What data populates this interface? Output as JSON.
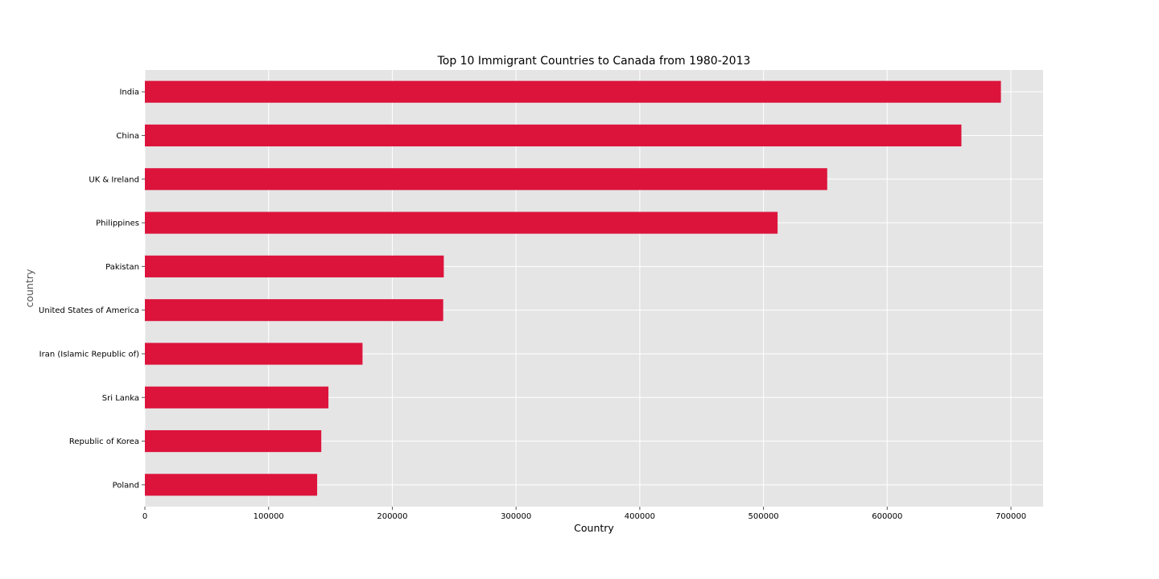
{
  "chart_data": {
    "type": "bar",
    "orientation": "horizontal",
    "title": "Top 10 Immigrant Countries to Canada from 1980-2013",
    "xlabel": "Country",
    "ylabel": "country",
    "categories": [
      "India",
      "China",
      "UK & Ireland",
      "Philippines",
      "Pakistan",
      "United States of America",
      "Iran (Islamic Republic of)",
      "Sri Lanka",
      "Republic of Korea",
      "Poland"
    ],
    "values": [
      691904,
      659962,
      551500,
      511391,
      241600,
      241122,
      175923,
      148358,
      142581,
      139241
    ],
    "xlim": [
      0,
      726000
    ],
    "xticks": [
      0,
      100000,
      200000,
      300000,
      400000,
      500000,
      600000,
      700000
    ],
    "xtick_labels": [
      "0",
      "100000",
      "200000",
      "300000",
      "400000",
      "500000",
      "600000",
      "700000"
    ],
    "bar_color": "#dc143c",
    "background_color": "#e5e5e5",
    "grid": true,
    "legend": "none"
  }
}
